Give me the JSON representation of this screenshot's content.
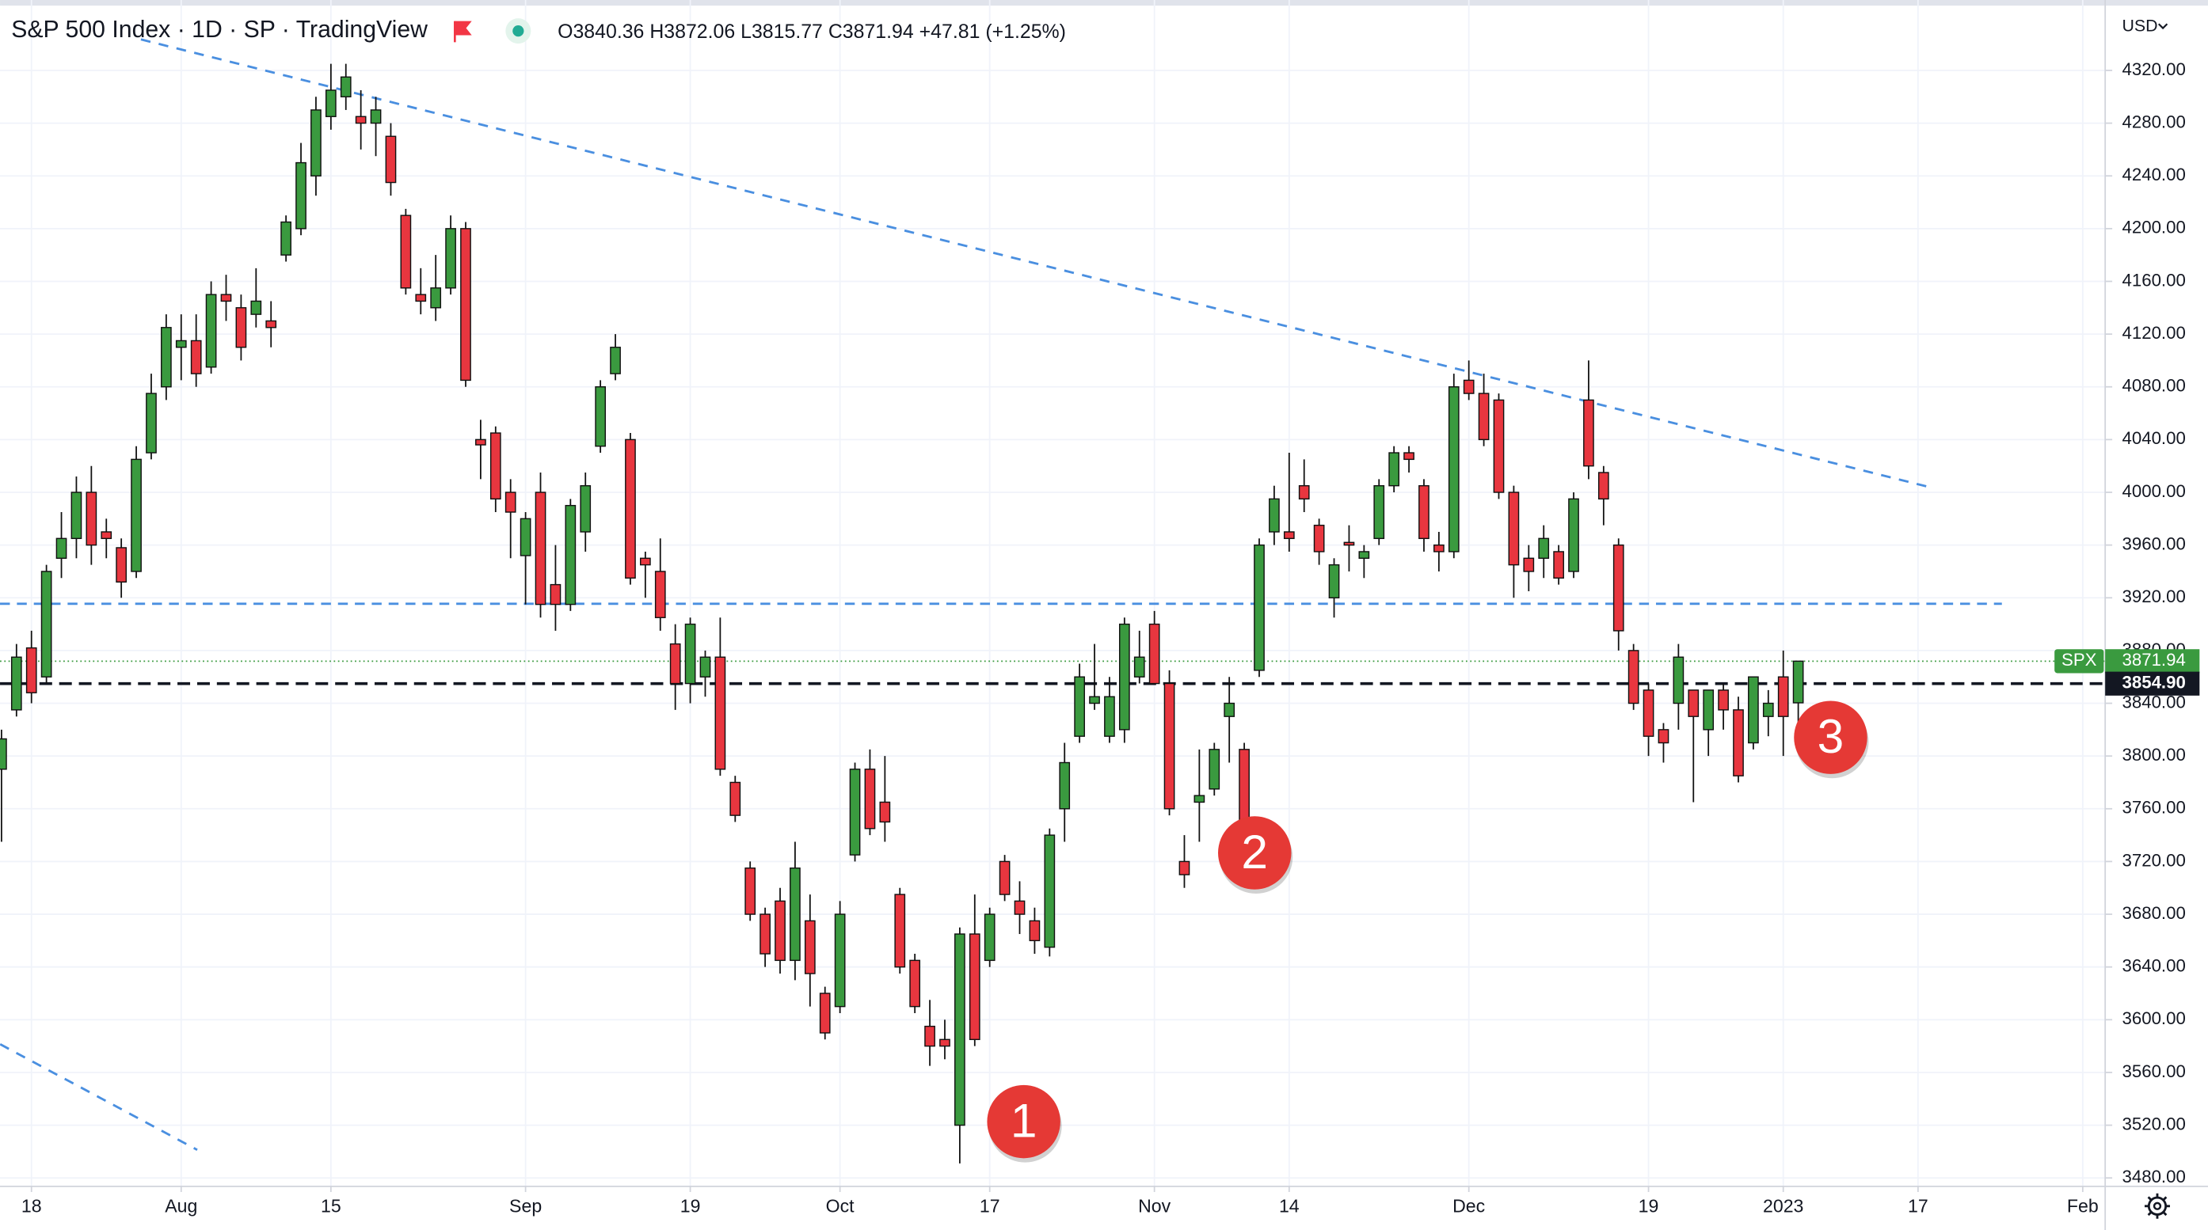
{
  "header": {
    "title": "S&P 500 Index · 1D · SP · TradingView",
    "open_label": "O",
    "high_label": "H",
    "low_label": "L",
    "close_label": "C",
    "change": {
      "value": 47.81,
      "label": "+47.81"
    },
    "change_pct": {
      "value": 1.25,
      "label": "(+1.25%)"
    },
    "currency": "USD"
  },
  "chart_data": {
    "type": "candlestick",
    "x": [
      0,
      1,
      2,
      3,
      4,
      5,
      6,
      7,
      8,
      9,
      10,
      11,
      12,
      13,
      14,
      15,
      16,
      17,
      18,
      19,
      20,
      21,
      22,
      23,
      24,
      25,
      26,
      27,
      28,
      29,
      30,
      31,
      32,
      33,
      34,
      35,
      36,
      37,
      38,
      39,
      40,
      41,
      42,
      43,
      44,
      45,
      46,
      47,
      48,
      49,
      50,
      51,
      52,
      53,
      54,
      55,
      56,
      57,
      58,
      59,
      60,
      61,
      62,
      63,
      64,
      65,
      66,
      67,
      68,
      69,
      70,
      71,
      72,
      73,
      74,
      75,
      76,
      77,
      78,
      79,
      80,
      81,
      82,
      83,
      84,
      85,
      86,
      87,
      88,
      89,
      90,
      91,
      92,
      93,
      94,
      95,
      96,
      97,
      98,
      99,
      100,
      101,
      102,
      103,
      104,
      105,
      106,
      107,
      108,
      109,
      110,
      111,
      112,
      113,
      114,
      115,
      116,
      117,
      118,
      119,
      120
    ],
    "open": [
      3790,
      3835,
      3882,
      3860,
      3950,
      3965,
      4000,
      3970,
      3958,
      3940,
      4030,
      4080,
      4110,
      4115,
      4095,
      4150,
      4140,
      4135,
      4130,
      4180,
      4200,
      4240,
      4285,
      4300,
      4285,
      4280,
      4270,
      4210,
      4150,
      4140,
      4155,
      4200,
      4040,
      4045,
      4000,
      3952,
      4000,
      3930,
      3915,
      3970,
      4035,
      4090,
      4040,
      3950,
      3940,
      3885,
      3855,
      3860,
      3875,
      3780,
      3715,
      3680,
      3690,
      3645,
      3675,
      3620,
      3610,
      3725,
      3790,
      3765,
      3695,
      3645,
      3595,
      3585,
      3520,
      3665,
      3645,
      3720,
      3690,
      3675,
      3655,
      3760,
      3815,
      3840,
      3815,
      3820,
      3860,
      3900,
      3855,
      3720,
      3765,
      3775,
      3830,
      3805,
      3865,
      3970,
      3970,
      4005,
      3975,
      3920,
      3962,
      3950,
      3965,
      4005,
      4030,
      4005,
      3960,
      3955,
      4085,
      4075,
      4070,
      4000,
      3950,
      3950,
      3955,
      3940,
      4070,
      4015,
      3960,
      3880,
      3850,
      3820,
      3840,
      3850,
      3820,
      3850,
      3835,
      3810,
      3830,
      3860,
      3840.36
    ],
    "high": [
      3820,
      3885,
      3895,
      3945,
      3985,
      4012,
      4020,
      3980,
      3965,
      4035,
      4090,
      4135,
      4135,
      4135,
      4160,
      4165,
      4150,
      4170,
      4145,
      4210,
      4265,
      4300,
      4325,
      4325,
      4305,
      4300,
      4280,
      4215,
      4170,
      4180,
      4210,
      4205,
      4055,
      4050,
      4010,
      3985,
      4015,
      3960,
      3995,
      4015,
      4085,
      4120,
      4045,
      3955,
      3965,
      3900,
      3905,
      3880,
      3905,
      3785,
      3720,
      3685,
      3700,
      3735,
      3695,
      3625,
      3690,
      3795,
      3805,
      3800,
      3700,
      3650,
      3615,
      3600,
      3670,
      3695,
      3685,
      3725,
      3705,
      3685,
      3745,
      3810,
      3870,
      3885,
      3860,
      3905,
      3895,
      3910,
      3865,
      3740,
      3805,
      3810,
      3860,
      3810,
      3965,
      4005,
      4030,
      4025,
      3980,
      3950,
      3975,
      3960,
      4010,
      4035,
      4035,
      4010,
      3970,
      4090,
      4100,
      4090,
      4075,
      4005,
      3960,
      3975,
      3960,
      4000,
      4100,
      4020,
      3965,
      3885,
      3855,
      3825,
      3885,
      3850,
      3850,
      3855,
      3845,
      3860,
      3850,
      3880,
      3872.06
    ],
    "low": [
      3735,
      3830,
      3840,
      3855,
      3935,
      3950,
      3945,
      3950,
      3920,
      3935,
      4025,
      4070,
      4085,
      4080,
      4090,
      4130,
      4100,
      4125,
      4110,
      4175,
      4195,
      4225,
      4275,
      4290,
      4260,
      4255,
      4225,
      4150,
      4135,
      4130,
      4150,
      4080,
      4010,
      3985,
      3950,
      3915,
      3905,
      3895,
      3910,
      3955,
      4030,
      4085,
      3930,
      3920,
      3895,
      3835,
      3840,
      3845,
      3785,
      3750,
      3675,
      3640,
      3635,
      3630,
      3610,
      3585,
      3605,
      3720,
      3740,
      3735,
      3635,
      3605,
      3565,
      3570,
      3491,
      3580,
      3640,
      3690,
      3665,
      3650,
      3648,
      3735,
      3810,
      3835,
      3810,
      3810,
      3855,
      3855,
      3755,
      3700,
      3735,
      3770,
      3795,
      3745,
      3860,
      3960,
      3955,
      3985,
      3945,
      3905,
      3940,
      3935,
      3960,
      4000,
      4015,
      3955,
      3940,
      3950,
      4070,
      4035,
      3995,
      3920,
      3925,
      3935,
      3930,
      3935,
      4010,
      3975,
      3880,
      3835,
      3800,
      3795,
      3820,
      3765,
      3800,
      3820,
      3780,
      3805,
      3815,
      3800,
      3815.77
    ],
    "close": [
      3813,
      3875,
      3848,
      3940,
      3965,
      4000,
      3960,
      3965,
      3932,
      4025,
      4075,
      4125,
      4115,
      4090,
      4150,
      4145,
      4110,
      4145,
      4125,
      4205,
      4250,
      4290,
      4305,
      4315,
      4280,
      4290,
      4235,
      4155,
      4145,
      4155,
      4200,
      4085,
      4036,
      3995,
      3985,
      3980,
      3915,
      3915,
      3990,
      4005,
      4080,
      4110,
      3935,
      3945,
      3905,
      3855,
      3900,
      3875,
      3790,
      3755,
      3680,
      3650,
      3645,
      3715,
      3635,
      3590,
      3680,
      3790,
      3745,
      3750,
      3640,
      3610,
      3580,
      3580,
      3665,
      3585,
      3680,
      3695,
      3680,
      3660,
      3740,
      3795,
      3860,
      3845,
      3845,
      3900,
      3875,
      3855,
      3760,
      3710,
      3770,
      3805,
      3840,
      3750,
      3960,
      3995,
      3965,
      3995,
      3955,
      3945,
      3960,
      3955,
      4005,
      4030,
      4025,
      3965,
      3955,
      4080,
      4075,
      4040,
      4000,
      3945,
      3940,
      3965,
      3935,
      3995,
      4020,
      3995,
      3895,
      3840,
      3815,
      3810,
      3875,
      3830,
      3850,
      3835,
      3785,
      3860,
      3840,
      3830,
      3871.94
    ],
    "up_color": "#3a9a3f",
    "down_color": "#e8363f",
    "xlim": [
      -0.1,
      140.5
    ],
    "xticks": [
      {
        "value": 2,
        "label": "18"
      },
      {
        "value": 12,
        "label": "Aug"
      },
      {
        "value": 22,
        "label": "15"
      },
      {
        "value": 35,
        "label": "Sep"
      },
      {
        "value": 46,
        "label": "19"
      },
      {
        "value": 56,
        "label": "Oct"
      },
      {
        "value": 66,
        "label": "17"
      },
      {
        "value": 77,
        "label": "Nov"
      },
      {
        "value": 86,
        "label": "14"
      },
      {
        "value": 98,
        "label": "Dec"
      },
      {
        "value": 110,
        "label": "19"
      },
      {
        "value": 119,
        "label": "2023"
      },
      {
        "value": 128,
        "label": "17"
      },
      {
        "value": 139,
        "label": "Feb"
      }
    ],
    "ylim": [
      3473.6,
      4373.4
    ],
    "yticks": [
      {
        "value": 3480,
        "label": "3480.00"
      },
      {
        "value": 3520,
        "label": "3520.00"
      },
      {
        "value": 3560,
        "label": "3560.00"
      },
      {
        "value": 3600,
        "label": "3600.00"
      },
      {
        "value": 3640,
        "label": "3640.00"
      },
      {
        "value": 3680,
        "label": "3680.00"
      },
      {
        "value": 3720,
        "label": "3720.00"
      },
      {
        "value": 3760,
        "label": "3760.00"
      },
      {
        "value": 3800,
        "label": "3800.00"
      },
      {
        "value": 3840,
        "label": "3840.00"
      },
      {
        "value": 3880,
        "label": "3880.00"
      },
      {
        "value": 3920,
        "label": "3920.00"
      },
      {
        "value": 3960,
        "label": "3960.00"
      },
      {
        "value": 4000,
        "label": "4000.00"
      },
      {
        "value": 4040,
        "label": "4040.00"
      },
      {
        "value": 4080,
        "label": "4080.00"
      },
      {
        "value": 4120,
        "label": "4120.00"
      },
      {
        "value": 4160,
        "label": "4160.00"
      },
      {
        "value": 4200,
        "label": "4200.00"
      },
      {
        "value": 4240,
        "label": "4240.00"
      },
      {
        "value": 4280,
        "label": "4280.00"
      },
      {
        "value": 4320,
        "label": "4320.00"
      }
    ],
    "grid": true,
    "trend_lines": [
      {
        "x": [
          9.31,
          128.75
        ],
        "y": [
          4343.5,
          4004
        ],
        "color": "#4a8fe0"
      },
      {
        "x": [
          -0.09,
          13.07
        ],
        "y": [
          3581.4,
          3501.3
        ],
        "color": "#4a8fe0"
      }
    ],
    "hlines": [
      {
        "value": 3915.5,
        "x_end": 133.6,
        "color": "#4a8fe0"
      },
      {
        "value": 3854.9,
        "label": "3854.90",
        "color": "#131722"
      }
    ],
    "last_price": {
      "name": "SPX",
      "value": 3871.94,
      "color": "#3a9a3f"
    },
    "annotations": [
      "1",
      "2",
      "3"
    ]
  }
}
